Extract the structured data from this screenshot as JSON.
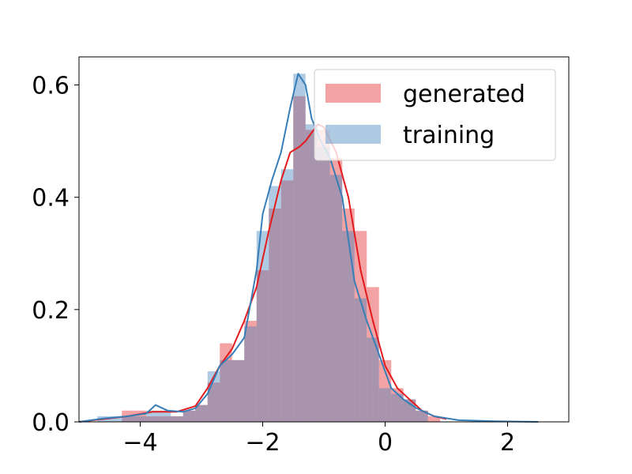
{
  "chart_data": {
    "type": "histogram",
    "xlim": [
      -5,
      3
    ],
    "ylim": [
      0,
      0.65
    ],
    "xticks": [
      -4,
      -2,
      0,
      2
    ],
    "xtick_labels": [
      "−4",
      "−2",
      "0",
      "2"
    ],
    "yticks": [
      0.0,
      0.2,
      0.4,
      0.6
    ],
    "ytick_labels": [
      "0.0",
      "0.2",
      "0.4",
      "0.6"
    ],
    "grid": false,
    "legend_position": "top-right",
    "bin_width": 0.2,
    "series": [
      {
        "name": "generated",
        "color": "#e41a1c",
        "bar_color": "#f4a3a4",
        "bins": [
          {
            "x": -4.2,
            "y": 0.02
          },
          {
            "x": -4.0,
            "y": 0.02
          },
          {
            "x": -3.8,
            "y": 0.01
          },
          {
            "x": -3.6,
            "y": 0.01
          },
          {
            "x": -3.4,
            "y": 0.01
          },
          {
            "x": -3.2,
            "y": 0.02
          },
          {
            "x": -3.0,
            "y": 0.03
          },
          {
            "x": -2.8,
            "y": 0.07
          },
          {
            "x": -2.6,
            "y": 0.14
          },
          {
            "x": -2.4,
            "y": 0.11
          },
          {
            "x": -2.2,
            "y": 0.18
          },
          {
            "x": -2.0,
            "y": 0.27
          },
          {
            "x": -1.8,
            "y": 0.38
          },
          {
            "x": -1.6,
            "y": 0.43
          },
          {
            "x": -1.4,
            "y": 0.58
          },
          {
            "x": -1.2,
            "y": 0.52
          },
          {
            "x": -1.0,
            "y": 0.52
          },
          {
            "x": -0.8,
            "y": 0.47
          },
          {
            "x": -0.6,
            "y": 0.38
          },
          {
            "x": -0.4,
            "y": 0.34
          },
          {
            "x": -0.2,
            "y": 0.24
          },
          {
            "x": 0.0,
            "y": 0.11
          },
          {
            "x": 0.2,
            "y": 0.06
          },
          {
            "x": 0.4,
            "y": 0.04
          },
          {
            "x": 0.6,
            "y": 0.02
          },
          {
            "x": 0.8,
            "y": 0.01
          }
        ],
        "kde": [
          [
            -5.0,
            0.0
          ],
          [
            -4.6,
            0.005
          ],
          [
            -4.2,
            0.01
          ],
          [
            -3.8,
            0.018
          ],
          [
            -3.4,
            0.018
          ],
          [
            -3.1,
            0.028
          ],
          [
            -2.9,
            0.06
          ],
          [
            -2.7,
            0.1
          ],
          [
            -2.5,
            0.13
          ],
          [
            -2.3,
            0.18
          ],
          [
            -2.1,
            0.24
          ],
          [
            -1.9,
            0.34
          ],
          [
            -1.7,
            0.43
          ],
          [
            -1.55,
            0.48
          ],
          [
            -1.4,
            0.49
          ],
          [
            -1.3,
            0.5
          ],
          [
            -1.1,
            0.53
          ],
          [
            -1.0,
            0.525
          ],
          [
            -0.8,
            0.48
          ],
          [
            -0.6,
            0.4
          ],
          [
            -0.4,
            0.27
          ],
          [
            -0.2,
            0.18
          ],
          [
            0.0,
            0.1
          ],
          [
            0.2,
            0.06
          ],
          [
            0.4,
            0.04
          ],
          [
            0.6,
            0.02
          ],
          [
            0.8,
            0.01
          ],
          [
            1.0,
            0.005
          ]
        ]
      },
      {
        "name": "training",
        "color": "#377eb8",
        "bar_color": "#a9c9e3",
        "bins": [
          {
            "x": -4.6,
            "y": 0.01
          },
          {
            "x": -4.4,
            "y": 0.01
          },
          {
            "x": -4.2,
            "y": 0.01
          },
          {
            "x": -4.0,
            "y": 0.01
          },
          {
            "x": -3.8,
            "y": 0.02
          },
          {
            "x": -3.6,
            "y": 0.02
          },
          {
            "x": -3.4,
            "y": 0.01
          },
          {
            "x": -3.2,
            "y": 0.02
          },
          {
            "x": -3.0,
            "y": 0.03
          },
          {
            "x": -2.8,
            "y": 0.09
          },
          {
            "x": -2.6,
            "y": 0.11
          },
          {
            "x": -2.4,
            "y": 0.11
          },
          {
            "x": -2.2,
            "y": 0.17
          },
          {
            "x": -2.0,
            "y": 0.34
          },
          {
            "x": -1.8,
            "y": 0.42
          },
          {
            "x": -1.6,
            "y": 0.45
          },
          {
            "x": -1.4,
            "y": 0.62
          },
          {
            "x": -1.2,
            "y": 0.53
          },
          {
            "x": -1.0,
            "y": 0.49
          },
          {
            "x": -0.8,
            "y": 0.44
          },
          {
            "x": -0.6,
            "y": 0.34
          },
          {
            "x": -0.4,
            "y": 0.22
          },
          {
            "x": -0.2,
            "y": 0.15
          },
          {
            "x": 0.0,
            "y": 0.06
          },
          {
            "x": 0.2,
            "y": 0.05
          },
          {
            "x": 0.4,
            "y": 0.04
          },
          {
            "x": 0.6,
            "y": 0.02
          }
        ],
        "kde": [
          [
            -5.0,
            0.0
          ],
          [
            -4.6,
            0.006
          ],
          [
            -4.2,
            0.01
          ],
          [
            -3.9,
            0.015
          ],
          [
            -3.75,
            0.03
          ],
          [
            -3.55,
            0.02
          ],
          [
            -3.3,
            0.018
          ],
          [
            -3.1,
            0.024
          ],
          [
            -2.9,
            0.05
          ],
          [
            -2.7,
            0.1
          ],
          [
            -2.5,
            0.12
          ],
          [
            -2.3,
            0.15
          ],
          [
            -2.1,
            0.27
          ],
          [
            -2.0,
            0.37
          ],
          [
            -1.85,
            0.43
          ],
          [
            -1.7,
            0.48
          ],
          [
            -1.55,
            0.56
          ],
          [
            -1.42,
            0.62
          ],
          [
            -1.3,
            0.6
          ],
          [
            -1.2,
            0.54
          ],
          [
            -1.05,
            0.5
          ],
          [
            -0.9,
            0.47
          ],
          [
            -0.7,
            0.4
          ],
          [
            -0.5,
            0.25
          ],
          [
            -0.3,
            0.18
          ],
          [
            -0.1,
            0.12
          ],
          [
            0.1,
            0.06
          ],
          [
            0.3,
            0.04
          ],
          [
            0.5,
            0.025
          ],
          [
            0.8,
            0.01
          ],
          [
            1.2,
            0.003
          ],
          [
            1.8,
            0.001
          ],
          [
            2.5,
            0.0
          ]
        ]
      }
    ]
  }
}
